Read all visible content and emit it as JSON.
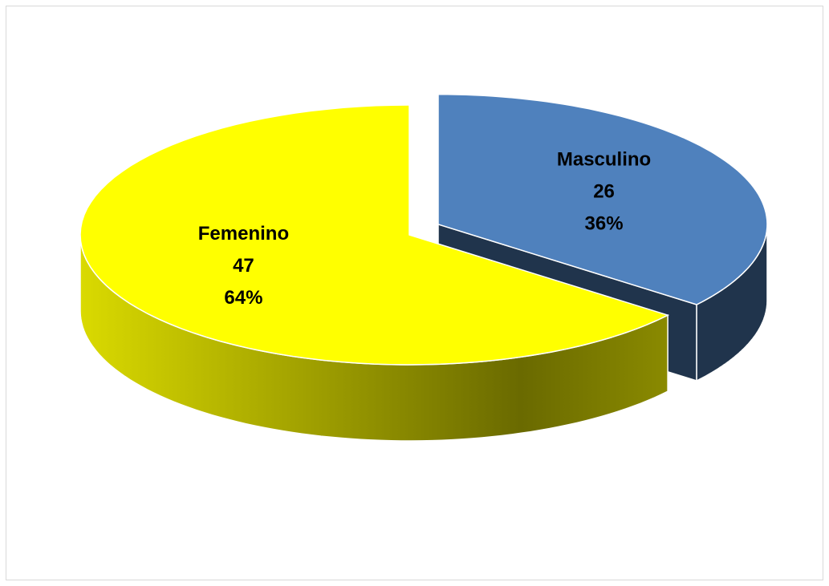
{
  "chart_data": {
    "type": "pie3d",
    "categories": [
      "Masculino",
      "Femenino"
    ],
    "values": [
      26,
      47
    ],
    "percentages": [
      {
        "value": 36,
        "label": "36%"
      },
      {
        "value": 64,
        "label": "64%"
      }
    ],
    "colors": [
      "#4f81bd",
      "#ffff00"
    ],
    "exploded": [
      true,
      false
    ]
  }
}
